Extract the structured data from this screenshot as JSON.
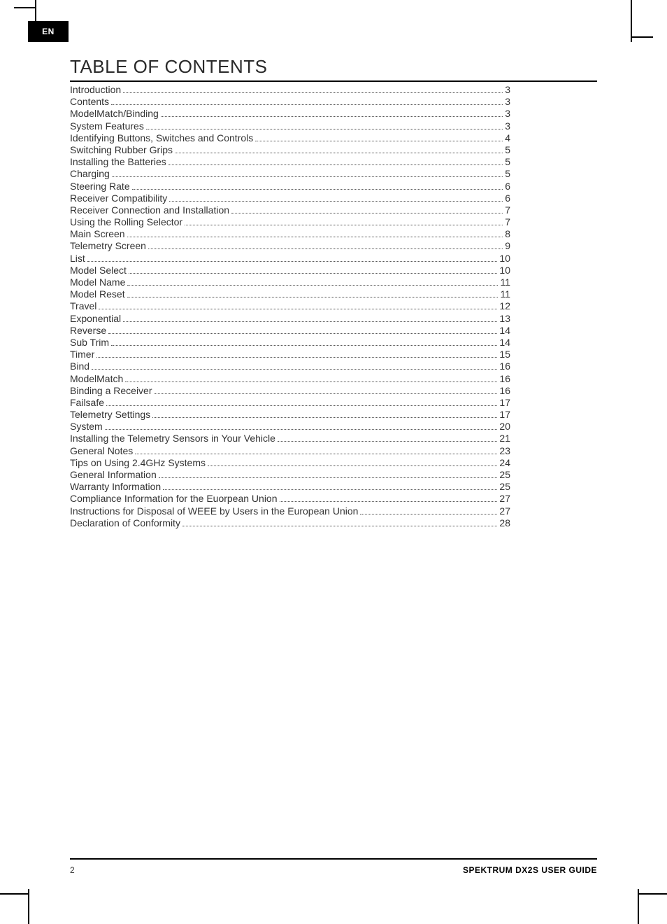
{
  "lang_tab": "EN",
  "title": "TABLE OF CONTENTS",
  "footer": {
    "page_number": "2",
    "guide_title": "SPEKTRUM DX2S USER GUIDE"
  },
  "toc": [
    {
      "label": "Introduction",
      "page": "3"
    },
    {
      "label": "Contents",
      "page": "3"
    },
    {
      "label": "ModelMatch/Binding",
      "page": "3"
    },
    {
      "label": "System Features",
      "page": "3"
    },
    {
      "label": "Identifying Buttons, Switches and Controls",
      "page": "4"
    },
    {
      "label": "Switching Rubber Grips",
      "page": "5"
    },
    {
      "label": "Installing the Batteries",
      "page": "5"
    },
    {
      "label": "Charging",
      "page": "5"
    },
    {
      "label": "Steering Rate",
      "page": "6"
    },
    {
      "label": "Receiver Compatibility",
      "page": "6"
    },
    {
      "label": "Receiver Connection and Installation",
      "page": "7"
    },
    {
      "label": "Using the Rolling Selector",
      "page": "7"
    },
    {
      "label": "Main Screen",
      "page": "8"
    },
    {
      "label": "Telemetry Screen",
      "page": "9"
    },
    {
      "label": "List",
      "page": "10"
    },
    {
      "label": "Model Select",
      "page": "10"
    },
    {
      "label": "Model Name",
      "page": "11"
    },
    {
      "label": "Model Reset",
      "page": "11"
    },
    {
      "label": "Travel",
      "page": "12"
    },
    {
      "label": "Exponential",
      "page": "13"
    },
    {
      "label": "Reverse",
      "page": "14"
    },
    {
      "label": "Sub Trim",
      "page": "14"
    },
    {
      "label": "Timer",
      "page": "15"
    },
    {
      "label": "Bind",
      "page": "16"
    },
    {
      "label": "ModelMatch",
      "page": "16"
    },
    {
      "label": "Binding a Receiver",
      "page": "16"
    },
    {
      "label": "Failsafe",
      "page": "17"
    },
    {
      "label": "Telemetry Settings",
      "page": "17"
    },
    {
      "label": "System",
      "page": "20"
    },
    {
      "label": "Installing the Telemetry Sensors in Your Vehicle",
      "page": "21"
    },
    {
      "label": "General Notes",
      "page": "23"
    },
    {
      "label": "Tips on Using 2.4GHz Systems",
      "page": "24"
    },
    {
      "label": "General Information",
      "page": "25"
    },
    {
      "label": "Warranty Information",
      "page": "25"
    },
    {
      "label": "Compliance Information for the Euorpean Union",
      "page": "27"
    },
    {
      "label": "Instructions for Disposal of WEEE by Users in the European Union",
      "page": "27"
    },
    {
      "label": "Declaration of Conformity",
      "page": "28"
    }
  ]
}
